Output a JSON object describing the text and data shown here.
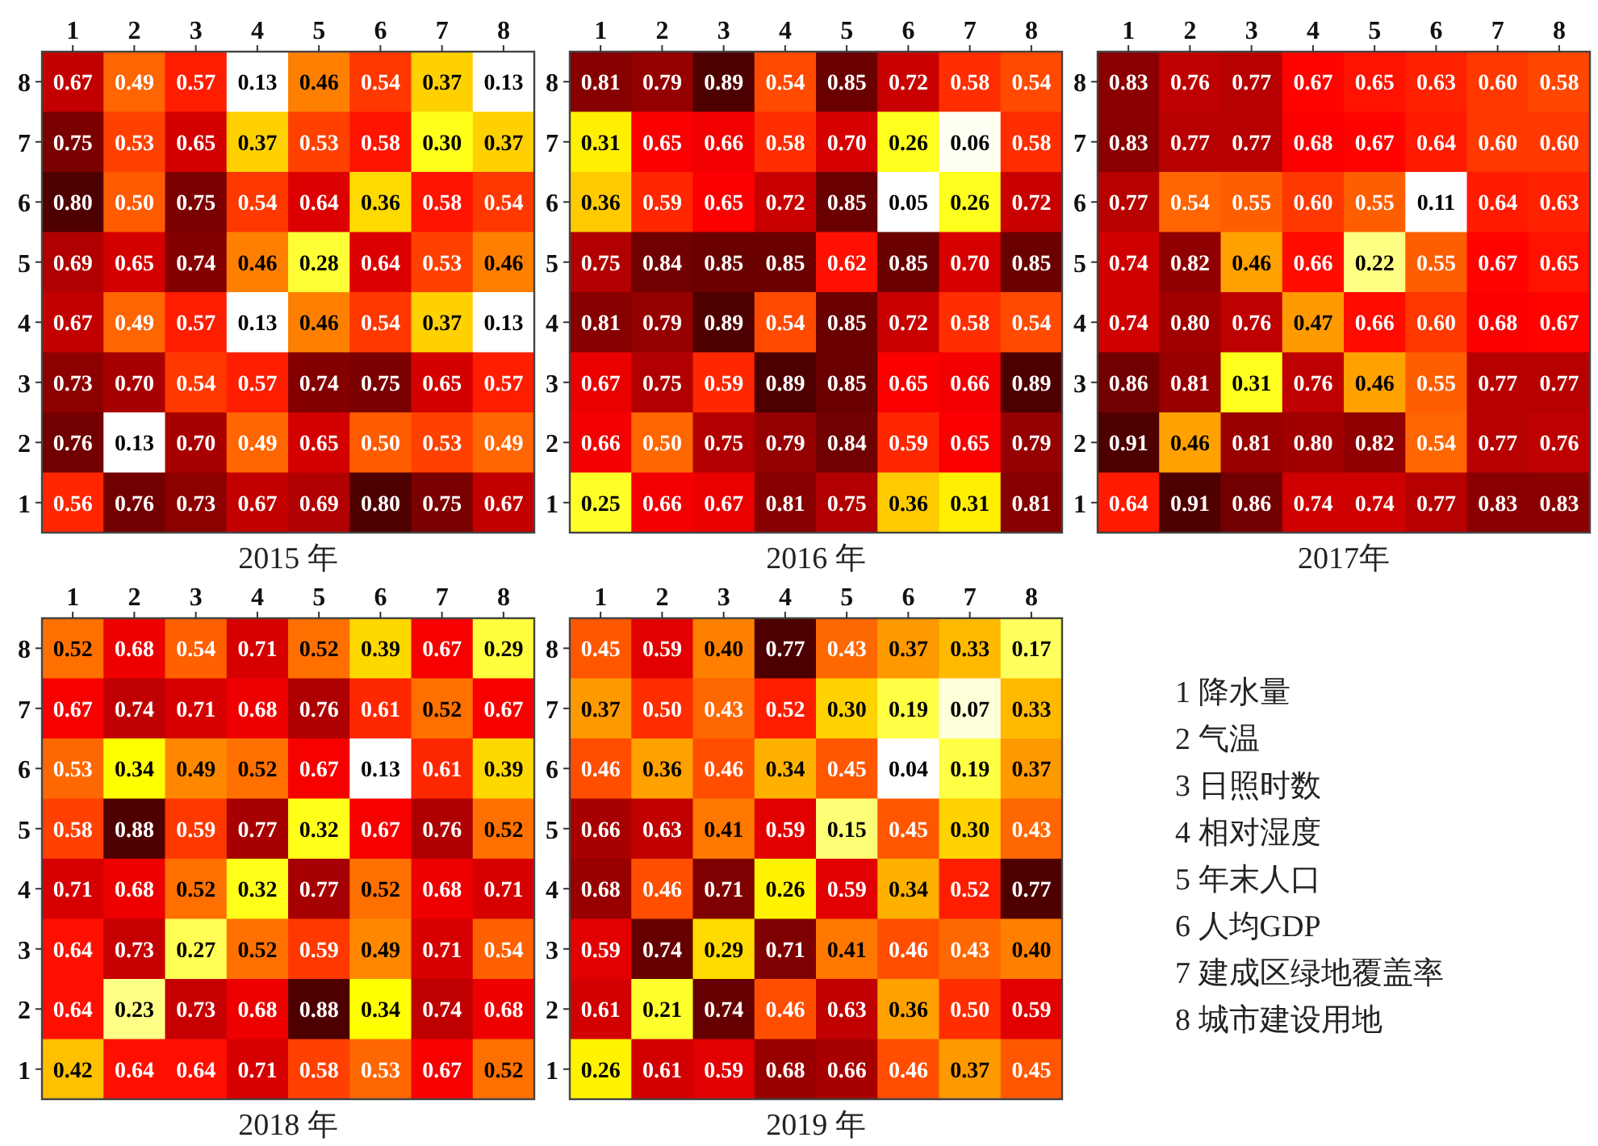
{
  "chart_data": [
    {
      "type": "heatmap",
      "data_labels": true,
      "xlabel": "2015 年",
      "categories": [
        "1",
        "2",
        "3",
        "4",
        "5",
        "6",
        "7",
        "8"
      ],
      "y_categories": [
        "8",
        "7",
        "6",
        "5",
        "4",
        "3",
        "2",
        "1"
      ],
      "cells": [
        [
          0.67,
          0.49,
          0.57,
          0.13,
          0.46,
          0.54,
          0.37,
          0.13
        ],
        [
          0.75,
          0.53,
          0.65,
          0.37,
          0.53,
          0.58,
          0.3,
          0.37
        ],
        [
          0.8,
          0.5,
          0.75,
          0.54,
          0.64,
          0.36,
          0.58,
          0.54
        ],
        [
          0.69,
          0.65,
          0.74,
          0.46,
          0.28,
          0.64,
          0.53,
          0.46
        ],
        [
          0.67,
          0.49,
          0.57,
          0.13,
          0.46,
          0.54,
          0.37,
          0.13
        ],
        [
          0.73,
          0.7,
          0.54,
          0.57,
          0.74,
          0.75,
          0.65,
          0.57
        ],
        [
          0.76,
          0.13,
          0.7,
          0.49,
          0.65,
          0.5,
          0.53,
          0.49
        ],
        [
          0.56,
          0.76,
          0.73,
          0.67,
          0.69,
          0.8,
          0.75,
          0.67
        ]
      ],
      "cell_labels": [
        [
          "0.67",
          "0.49",
          "0.57",
          "0.13",
          "0.46",
          "0.54",
          "0.37",
          "0.13"
        ],
        [
          "0.75",
          "0.53",
          "0.65",
          "0.37",
          "0.53",
          "0.58",
          "0.30",
          "0.37"
        ],
        [
          "0.80",
          "0.50",
          "0.75",
          "0.54",
          "0.64",
          "0.36",
          "0.58",
          "0.54"
        ],
        [
          "0.69",
          "0.65",
          "0.74",
          "0.46",
          "0.28",
          "0.64",
          "0.53",
          "0.46"
        ],
        [
          "0.67",
          "0.49",
          "0.57",
          "0.13",
          "0.46",
          "0.54",
          "0.37",
          "0.13"
        ],
        [
          "0.73",
          "0.70",
          "0.54",
          "0.57",
          "0.74",
          "0.75",
          "0.65",
          "0.57"
        ],
        [
          "0.76",
          "0.13",
          "0.70",
          "0.49",
          "0.65",
          "0.50",
          "0.53",
          "0.49"
        ],
        [
          "0.56",
          "0.76",
          "0.73",
          "0.67",
          "0.69",
          "0.80",
          "0.75",
          "0.67"
        ]
      ]
    },
    {
      "type": "heatmap",
      "data_labels": true,
      "xlabel": "2016 年",
      "categories": [
        "1",
        "2",
        "3",
        "4",
        "5",
        "6",
        "7",
        "8"
      ],
      "y_categories": [
        "8",
        "7",
        "6",
        "5",
        "4",
        "3",
        "2",
        "1"
      ],
      "cells": [
        [
          0.81,
          0.79,
          0.89,
          0.54,
          0.85,
          0.72,
          0.58,
          0.54
        ],
        [
          0.31,
          0.65,
          0.66,
          0.58,
          0.7,
          0.26,
          0.06,
          0.58
        ],
        [
          0.36,
          0.59,
          0.65,
          0.72,
          0.85,
          0.05,
          0.26,
          0.72
        ],
        [
          0.75,
          0.84,
          0.85,
          0.85,
          0.62,
          0.85,
          0.7,
          0.85
        ],
        [
          0.81,
          0.79,
          0.89,
          0.54,
          0.85,
          0.72,
          0.58,
          0.54
        ],
        [
          0.67,
          0.75,
          0.59,
          0.89,
          0.85,
          0.65,
          0.66,
          0.89
        ],
        [
          0.66,
          0.5,
          0.75,
          0.79,
          0.84,
          0.59,
          0.65,
          0.79
        ],
        [
          0.25,
          0.66,
          0.67,
          0.81,
          0.75,
          0.36,
          0.31,
          0.81
        ]
      ],
      "cell_labels": [
        [
          "0.81",
          "0.79",
          "0.89",
          "0.54",
          "0.85",
          "0.72",
          "0.58",
          "0.54"
        ],
        [
          "0.31",
          "0.65",
          "0.66",
          "0.58",
          "0.70",
          "0.26",
          "0.06",
          "0.58"
        ],
        [
          "0.36",
          "0.59",
          "0.65",
          "0.72",
          "0.85",
          "0.05",
          "0.26",
          "0.72"
        ],
        [
          "0.75",
          "0.84",
          "0.85",
          "0.85",
          "0.62",
          "0.85",
          "0.70",
          "0.85"
        ],
        [
          "0.81",
          "0.79",
          "0.89",
          "0.54",
          "0.85",
          "0.72",
          "0.58",
          "0.54"
        ],
        [
          "0.67",
          "0.75",
          "0.59",
          "0.89",
          "0.85",
          "0.65",
          "0.66",
          "0.89"
        ],
        [
          "0.66",
          "0.50",
          "0.75",
          "0.79",
          "0.84",
          "0.59",
          "0.65",
          "0.79"
        ],
        [
          "0.25",
          "0.66",
          "0.67",
          "0.81",
          "0.75",
          "0.36",
          "0.31",
          "0.81"
        ]
      ]
    },
    {
      "type": "heatmap",
      "data_labels": true,
      "xlabel": "2017年",
      "categories": [
        "1",
        "2",
        "3",
        "4",
        "5",
        "6",
        "7",
        "8"
      ],
      "y_categories": [
        "8",
        "7",
        "6",
        "5",
        "4",
        "3",
        "2",
        "1"
      ],
      "cells": [
        [
          0.83,
          0.76,
          0.77,
          0.67,
          0.65,
          0.63,
          0.6,
          0.58
        ],
        [
          0.83,
          0.77,
          0.77,
          0.68,
          0.67,
          0.64,
          0.6,
          0.6
        ],
        [
          0.77,
          0.54,
          0.55,
          0.6,
          0.55,
          0.11,
          0.64,
          0.63
        ],
        [
          0.74,
          0.82,
          0.46,
          0.66,
          0.22,
          0.55,
          0.67,
          0.65
        ],
        [
          0.74,
          0.8,
          0.76,
          0.47,
          0.66,
          0.6,
          0.68,
          0.67
        ],
        [
          0.86,
          0.81,
          0.31,
          0.76,
          0.46,
          0.55,
          0.77,
          0.77
        ],
        [
          0.91,
          0.46,
          0.81,
          0.8,
          0.82,
          0.54,
          0.77,
          0.76
        ],
        [
          0.64,
          0.91,
          0.86,
          0.74,
          0.74,
          0.77,
          0.83,
          0.83
        ]
      ],
      "cell_labels": [
        [
          "0.83",
          "0.76",
          "0.77",
          "0.67",
          "0.65",
          "0.63",
          "0.60",
          "0.58"
        ],
        [
          "0.83",
          "0.77",
          "0.77",
          "0.68",
          "0.67",
          "0.64",
          "0.60",
          "0.60"
        ],
        [
          "0.77",
          "0.54",
          "0.55",
          "0.60",
          "0.55",
          "0.11",
          "0.64",
          "0.63"
        ],
        [
          "0.74",
          "0.82",
          "0.46",
          "0.66",
          "0.22",
          "0.55",
          "0.67",
          "0.65"
        ],
        [
          "0.74",
          "0.80",
          "0.76",
          "0.47",
          "0.66",
          "0.60",
          "0.68",
          "0.67"
        ],
        [
          "0.86",
          "0.81",
          "0.31",
          "0.76",
          "0.46",
          "0.55",
          "0.77",
          "0.77"
        ],
        [
          "0.91",
          "0.46",
          "0.81",
          "0.80",
          "0.82",
          "0.54",
          "0.77",
          "0.76"
        ],
        [
          "0.64",
          "0.91",
          "0.86",
          "0.74",
          "0.74",
          "0.77",
          "0.83",
          "0.83"
        ]
      ]
    },
    {
      "type": "heatmap",
      "data_labels": true,
      "xlabel": "2018 年",
      "categories": [
        "1",
        "2",
        "3",
        "4",
        "5",
        "6",
        "7",
        "8"
      ],
      "y_categories": [
        "8",
        "7",
        "6",
        "5",
        "4",
        "3",
        "2",
        "1"
      ],
      "cells": [
        [
          0.52,
          0.68,
          0.54,
          0.71,
          0.52,
          0.39,
          0.67,
          0.29
        ],
        [
          0.67,
          0.74,
          0.71,
          0.68,
          0.76,
          0.61,
          0.52,
          0.67
        ],
        [
          0.53,
          0.34,
          0.49,
          0.52,
          0.67,
          0.13,
          0.61,
          0.39
        ],
        [
          0.58,
          0.88,
          0.59,
          0.77,
          0.32,
          0.67,
          0.76,
          0.52
        ],
        [
          0.71,
          0.68,
          0.52,
          0.32,
          0.77,
          0.52,
          0.68,
          0.71
        ],
        [
          0.64,
          0.73,
          0.27,
          0.52,
          0.59,
          0.49,
          0.71,
          0.54
        ],
        [
          0.64,
          0.23,
          0.73,
          0.68,
          0.88,
          0.34,
          0.74,
          0.68
        ],
        [
          0.42,
          0.64,
          0.64,
          0.71,
          0.58,
          0.53,
          0.67,
          0.52
        ]
      ],
      "cell_labels": [
        [
          "0.52",
          "0.68",
          "0.54",
          "0.71",
          "0.52",
          "0.39",
          "0.67",
          "0.29"
        ],
        [
          "0.67",
          "0.74",
          "0.71",
          "0.68",
          "0.76",
          "0.61",
          "0.52",
          "0.67"
        ],
        [
          "0.53",
          "0.34",
          "0.49",
          "0.52",
          "0.67",
          "0.13",
          "0.61",
          "0.39"
        ],
        [
          "0.58",
          "0.88",
          "0.59",
          "0.77",
          "0.32",
          "0.67",
          "0.76",
          "0.52"
        ],
        [
          "0.71",
          "0.68",
          "0.52",
          "0.32",
          "0.77",
          "0.52",
          "0.68",
          "0.71"
        ],
        [
          "0.64",
          "0.73",
          "0.27",
          "0.52",
          "0.59",
          "0.49",
          "0.71",
          "0.54"
        ],
        [
          "0.64",
          "0.23",
          "0.73",
          "0.68",
          "0.88",
          "0.34",
          "0.74",
          "0.68"
        ],
        [
          "0.42",
          "0.64",
          "0.64",
          "0.71",
          "0.58",
          "0.53",
          "0.67",
          "0.52"
        ]
      ]
    },
    {
      "type": "heatmap",
      "data_labels": true,
      "xlabel": "2019 年",
      "categories": [
        "1",
        "2",
        "3",
        "4",
        "5",
        "6",
        "7",
        "8"
      ],
      "y_categories": [
        "8",
        "7",
        "6",
        "5",
        "4",
        "3",
        "2",
        "1"
      ],
      "cells": [
        [
          0.45,
          0.59,
          0.4,
          0.77,
          0.43,
          0.37,
          0.33,
          0.17
        ],
        [
          0.37,
          0.5,
          0.43,
          0.52,
          0.3,
          0.19,
          0.07,
          0.33
        ],
        [
          0.46,
          0.36,
          0.46,
          0.34,
          0.45,
          0.04,
          0.19,
          0.37
        ],
        [
          0.66,
          0.63,
          0.41,
          0.59,
          0.15,
          0.45,
          0.3,
          0.43
        ],
        [
          0.68,
          0.46,
          0.71,
          0.26,
          0.59,
          0.34,
          0.52,
          0.77
        ],
        [
          0.59,
          0.74,
          0.29,
          0.71,
          0.41,
          0.46,
          0.43,
          0.4
        ],
        [
          0.61,
          0.21,
          0.74,
          0.46,
          0.63,
          0.36,
          0.5,
          0.59
        ],
        [
          0.26,
          0.61,
          0.59,
          0.68,
          0.66,
          0.46,
          0.37,
          0.45
        ]
      ],
      "cell_labels": [
        [
          "0.45",
          "0.59",
          "0.40",
          "0.77",
          "0.43",
          "0.37",
          "0.33",
          "0.17"
        ],
        [
          "0.37",
          "0.50",
          "0.43",
          "0.52",
          "0.30",
          "0.19",
          "0.07",
          "0.33"
        ],
        [
          "0.46",
          "0.36",
          "0.46",
          "0.34",
          "0.45",
          "0.04",
          "0.19",
          "0.37"
        ],
        [
          "0.66",
          "0.63",
          "0.41",
          "0.59",
          "0.15",
          "0.45",
          "0.30",
          "0.43"
        ],
        [
          "0.68",
          "0.46",
          "0.71",
          "0.26",
          "0.59",
          "0.34",
          "0.52",
          "0.77"
        ],
        [
          "0.59",
          "0.74",
          "0.29",
          "0.71",
          "0.41",
          "0.46",
          "0.43",
          "0.40"
        ],
        [
          "0.61",
          "0.21",
          "0.74",
          "0.46",
          "0.63",
          "0.36",
          "0.50",
          "0.59"
        ],
        [
          "0.26",
          "0.61",
          "0.59",
          "0.68",
          "0.66",
          "0.46",
          "0.37",
          "0.45"
        ]
      ]
    },
    {
      "type": "other",
      "annotations": [
        "1 降水量",
        "2 气温",
        "3 日照时数",
        "4 相对湿度",
        "5 年末人口",
        "6 人均GDP",
        "7 建成区绿地覆盖率",
        "8 城市建设用地"
      ]
    }
  ]
}
